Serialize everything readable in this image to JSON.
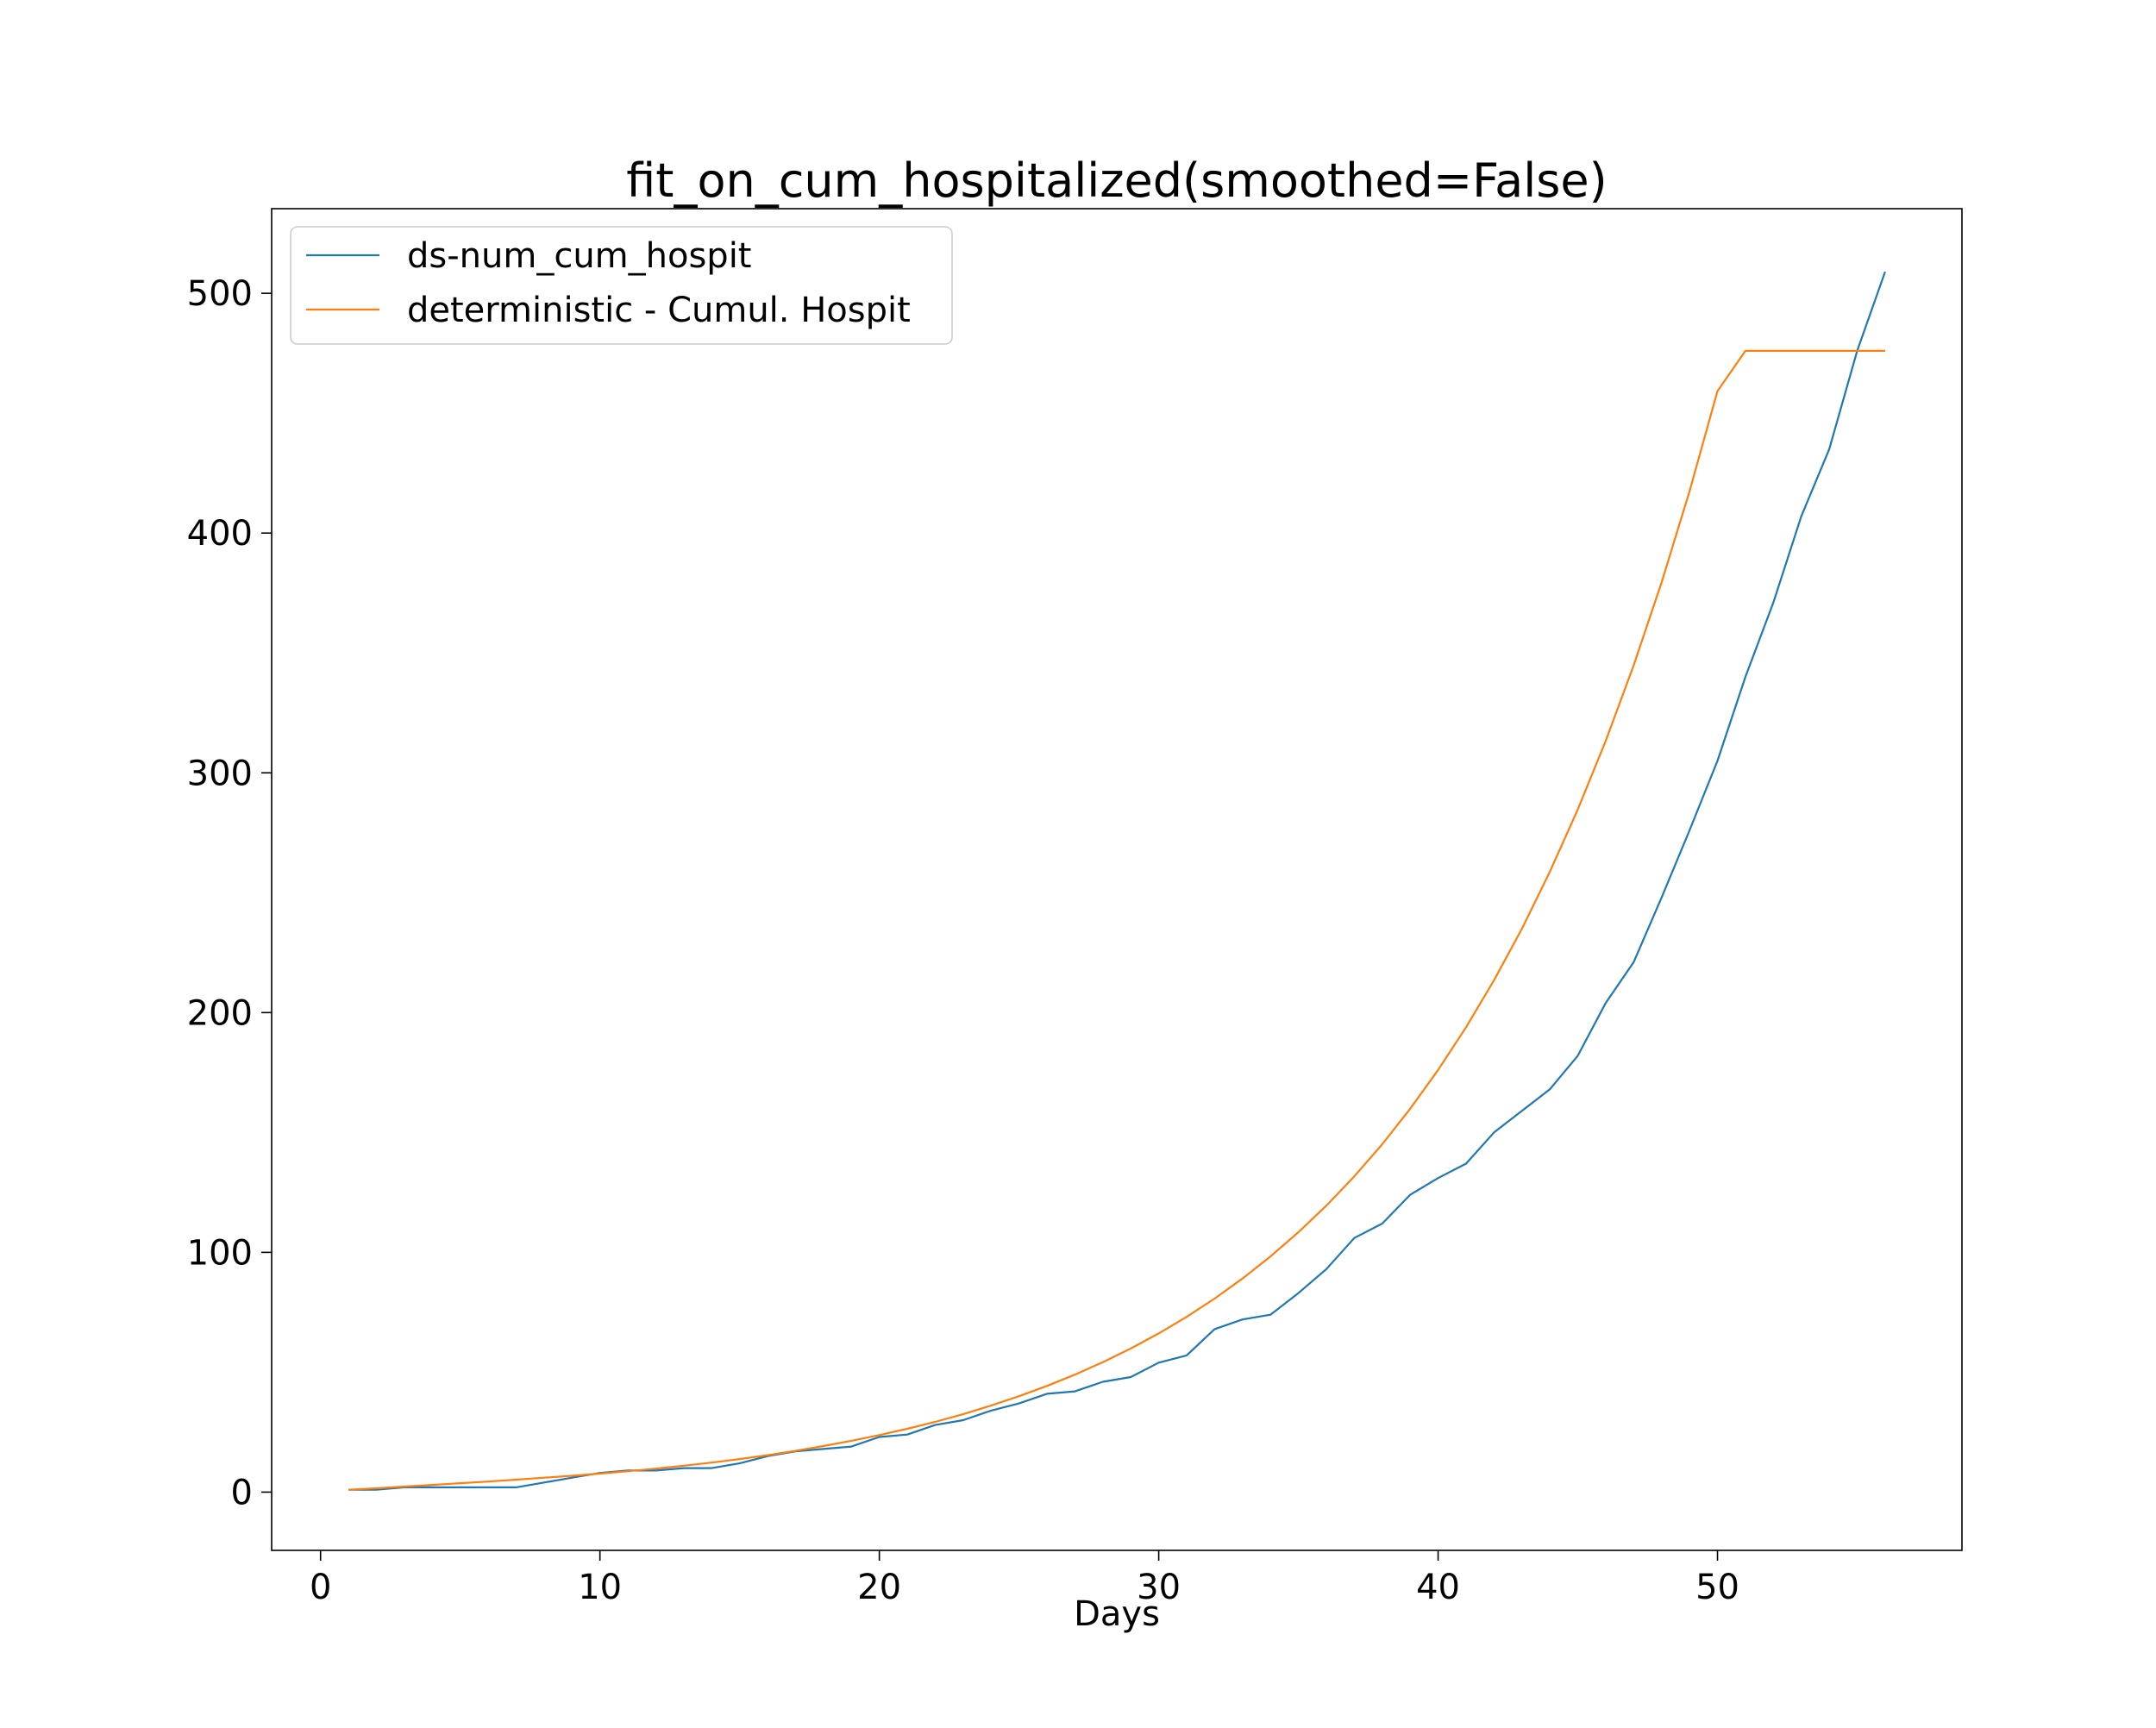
{
  "chart_data": {
    "type": "line",
    "title": "fit_on_cum_hospitalized(smoothed=False)",
    "xlabel": "Days",
    "ylabel": "",
    "xlim": [
      -1.75,
      58.75
    ],
    "ylim": [
      -24.3,
      535.3
    ],
    "xticks": [
      0,
      10,
      20,
      30,
      40,
      50
    ],
    "yticks": [
      0,
      100,
      200,
      300,
      400,
      500
    ],
    "grid": false,
    "legend_position": "upper-left",
    "series": [
      {
        "name": "ds-num_cum_hospit",
        "color": "#1f77b4",
        "x": [
          1,
          2,
          3,
          4,
          5,
          6,
          7,
          8,
          9,
          10,
          11,
          12,
          13,
          14,
          15,
          16,
          17,
          18,
          19,
          20,
          21,
          22,
          23,
          24,
          25,
          26,
          27,
          28,
          29,
          30,
          31,
          32,
          33,
          34,
          35,
          36,
          37,
          38,
          39,
          40,
          41,
          42,
          43,
          44,
          45,
          46,
          47,
          48,
          49,
          50,
          51,
          52,
          53,
          54,
          55,
          56
        ],
        "y": [
          1,
          1,
          2,
          2,
          2,
          2,
          2,
          4,
          6,
          8,
          9,
          9,
          10,
          10,
          12,
          15,
          17,
          18,
          19,
          23,
          24,
          28,
          30,
          34,
          37,
          41,
          42,
          46,
          48,
          54,
          57,
          68,
          72,
          74,
          83,
          93,
          106,
          112,
          124,
          131,
          137,
          150,
          159,
          168,
          182,
          204,
          221,
          248,
          276,
          305,
          340,
          371,
          407,
          435,
          476,
          509
        ]
      },
      {
        "name": "deterministic - Cumul. Hospit",
        "color": "#ff7f0e",
        "x": [
          1,
          2,
          3,
          4,
          5,
          6,
          7,
          8,
          9,
          10,
          11,
          12,
          13,
          14,
          15,
          16,
          17,
          18,
          19,
          20,
          21,
          22,
          23,
          24,
          25,
          26,
          27,
          28,
          29,
          30,
          31,
          32,
          33,
          34,
          35,
          36,
          37,
          38,
          39,
          40,
          41,
          42,
          43,
          44,
          45,
          46,
          47,
          48,
          49,
          50,
          51,
          52,
          53,
          54,
          55,
          56
        ],
        "y": [
          1.0,
          1.6,
          2.3,
          3.0,
          3.7,
          4.4,
          5.2,
          6.0,
          6.8,
          7.7,
          8.7,
          9.8,
          11.0,
          12.3,
          13.8,
          15.4,
          17.2,
          19.2,
          21.4,
          23.8,
          26.4,
          29.3,
          32.5,
          36.1,
          40.0,
          44.3,
          49.0,
          54.2,
          59.9,
          66.2,
          73.1,
          80.7,
          89.1,
          98.3,
          108.4,
          119.5,
          131.7,
          145.1,
          159.9,
          176.1,
          193.9,
          213.5,
          235.0,
          258.7,
          284.7,
          313.3,
          344.8,
          379.4,
          417.4,
          459.2,
          476.0,
          476.0,
          476.0,
          476.0,
          476.0,
          476.0
        ]
      }
    ]
  }
}
